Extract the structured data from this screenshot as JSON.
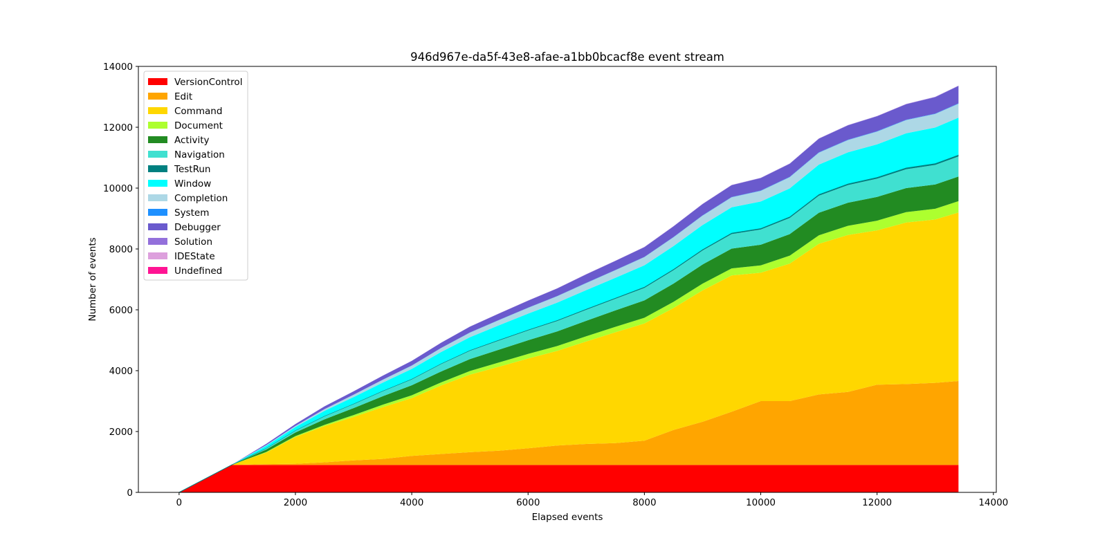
{
  "chart_data": {
    "type": "area",
    "stacked": true,
    "title": "946d967e-da5f-43e8-afae-a1bb0bcacf8e event stream",
    "xlabel": "Elapsed events",
    "ylabel": "Number of events",
    "xlim": [
      -700,
      14050
    ],
    "ylim": [
      0,
      14000
    ],
    "xticks": [
      0,
      2000,
      4000,
      6000,
      8000,
      10000,
      12000,
      14000
    ],
    "yticks": [
      0,
      2000,
      4000,
      6000,
      8000,
      10000,
      12000,
      14000
    ],
    "grid": false,
    "legend_position": "top-left",
    "x": [
      0,
      900,
      1500,
      2000,
      2500,
      3000,
      3500,
      4000,
      4500,
      5000,
      5500,
      6000,
      6500,
      7000,
      7500,
      8000,
      8500,
      9000,
      9500,
      10000,
      10500,
      11000,
      11500,
      12000,
      12500,
      13000,
      13400
    ],
    "series": [
      {
        "name": "VersionControl",
        "color": "#ff0000",
        "values": [
          0,
          900,
          900,
          900,
          900,
          900,
          900,
          900,
          900,
          900,
          900,
          900,
          900,
          900,
          900,
          900,
          900,
          900,
          900,
          900,
          900,
          900,
          900,
          900,
          900,
          900,
          900
        ]
      },
      {
        "name": "Edit",
        "color": "#ffa500",
        "values": [
          0,
          0,
          30,
          40,
          90,
          150,
          200,
          300,
          360,
          420,
          470,
          550,
          640,
          690,
          720,
          800,
          1150,
          1420,
          1750,
          2100,
          2100,
          2320,
          2400,
          2640,
          2660,
          2700,
          2760
        ]
      },
      {
        "name": "Command",
        "color": "#ffd700",
        "values": [
          0,
          0,
          380,
          880,
          1190,
          1430,
          1700,
          1900,
          2250,
          2550,
          2760,
          2950,
          3110,
          3370,
          3640,
          3850,
          4010,
          4320,
          4480,
          4220,
          4520,
          4950,
          5160,
          5070,
          5310,
          5370,
          5540
        ]
      },
      {
        "name": "Document",
        "color": "#adff2f",
        "values": [
          0,
          0,
          20,
          30,
          40,
          60,
          80,
          90,
          100,
          120,
          140,
          150,
          160,
          170,
          180,
          190,
          200,
          220,
          230,
          240,
          260,
          280,
          300,
          320,
          340,
          350,
          370
        ]
      },
      {
        "name": "Activity",
        "color": "#228b22",
        "values": [
          0,
          0,
          80,
          120,
          180,
          230,
          280,
          330,
          360,
          390,
          420,
          450,
          480,
          510,
          540,
          570,
          600,
          630,
          650,
          680,
          710,
          740,
          760,
          780,
          790,
          800,
          810
        ]
      },
      {
        "name": "Navigation",
        "color": "#40e0d0",
        "values": [
          0,
          0,
          40,
          60,
          100,
          130,
          160,
          190,
          240,
          270,
          300,
          320,
          340,
          360,
          380,
          410,
          440,
          460,
          480,
          500,
          530,
          560,
          580,
          600,
          620,
          640,
          660
        ]
      },
      {
        "name": "TestRun",
        "color": "#008080",
        "values": [
          0,
          0,
          5,
          8,
          10,
          12,
          14,
          16,
          18,
          20,
          22,
          24,
          26,
          28,
          30,
          32,
          34,
          36,
          38,
          40,
          42,
          44,
          46,
          48,
          50,
          52,
          54
        ]
      },
      {
        "name": "Window",
        "color": "#00ffff",
        "values": [
          0,
          0,
          80,
          110,
          170,
          220,
          270,
          330,
          380,
          430,
          480,
          530,
          580,
          620,
          660,
          710,
          760,
          800,
          840,
          880,
          930,
          980,
          1030,
          1080,
          1130,
          1180,
          1220
        ]
      },
      {
        "name": "Completion",
        "color": "#add8e6",
        "values": [
          0,
          0,
          20,
          35,
          55,
          75,
          95,
          110,
          130,
          150,
          170,
          190,
          210,
          230,
          250,
          270,
          290,
          310,
          330,
          350,
          370,
          390,
          405,
          420,
          435,
          445,
          460
        ]
      },
      {
        "name": "System",
        "color": "#1e90ff",
        "values": [
          0,
          0,
          1,
          2,
          2,
          3,
          3,
          4,
          4,
          5,
          5,
          6,
          6,
          7,
          7,
          8,
          8,
          9,
          9,
          10,
          10,
          11,
          11,
          12,
          12,
          13,
          13
        ]
      },
      {
        "name": "Debugger",
        "color": "#6a5acd",
        "values": [
          0,
          0,
          40,
          60,
          90,
          110,
          130,
          150,
          170,
          190,
          210,
          230,
          250,
          280,
          300,
          320,
          350,
          370,
          390,
          410,
          430,
          450,
          470,
          490,
          510,
          540,
          570
        ]
      },
      {
        "name": "Solution",
        "color": "#9370db",
        "values": [
          0,
          0,
          1,
          1,
          2,
          2,
          2,
          3,
          3,
          3,
          4,
          4,
          4,
          5,
          5,
          5,
          6,
          6,
          6,
          7,
          7,
          7,
          8,
          8,
          8,
          9,
          9
        ]
      },
      {
        "name": "IDEState",
        "color": "#dda0dd",
        "values": [
          0,
          0,
          1,
          1,
          1,
          1,
          1,
          1,
          1,
          2,
          2,
          2,
          2,
          2,
          2,
          2,
          2,
          2,
          2,
          2,
          2,
          2,
          2,
          2,
          2,
          2,
          2
        ]
      },
      {
        "name": " Undefined",
        "color": "#ff1493",
        "values": [
          0,
          0,
          0,
          0,
          0,
          0,
          0,
          0,
          0,
          0,
          0,
          0,
          0,
          0,
          0,
          0,
          0,
          0,
          0,
          0,
          0,
          0,
          0,
          0,
          0,
          0,
          0
        ]
      }
    ]
  }
}
